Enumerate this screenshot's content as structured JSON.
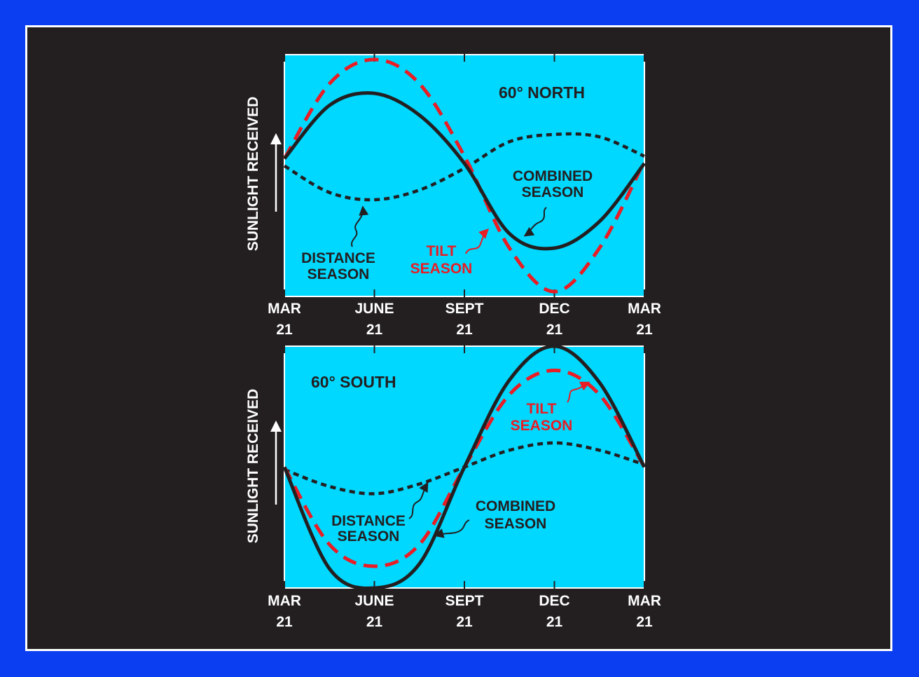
{
  "colors": {
    "background": "#0a3ef0",
    "panel": "#231f20",
    "plot_area": "#00d8ff",
    "combined": "#231f20",
    "tilt": "#ea1c24",
    "distance": "#231f20",
    "axis_text": "#ffffff"
  },
  "chart_data": [
    {
      "type": "line",
      "title": "60° NORTH",
      "ylabel": "SUNLIGHT RECEIVED",
      "xlabel": "",
      "x_ticks": [
        {
          "month": "MAR",
          "day": "21",
          "x": 0
        },
        {
          "month": "JUNE",
          "day": "21",
          "x": 3
        },
        {
          "month": "SEPT",
          "day": "21",
          "x": 6
        },
        {
          "month": "DEC",
          "day": "21",
          "x": 9
        },
        {
          "month": "MAR",
          "day": "21",
          "x": 12
        }
      ],
      "xlim": [
        0,
        12
      ],
      "ylim": [
        0,
        100
      ],
      "series": [
        {
          "key": "tilt",
          "label_lines": [
            "TILT",
            "SEASON"
          ],
          "style": "dashed",
          "x": [
            0,
            1.5,
            3,
            4.5,
            6,
            7.5,
            9,
            10.5,
            12
          ],
          "values": [
            57,
            88,
            98,
            88,
            58,
            20,
            2,
            20,
            56
          ]
        },
        {
          "key": "combined",
          "label_lines": [
            "COMBINED",
            "SEASON"
          ],
          "style": "solid",
          "x": [
            0,
            1.5,
            3,
            4.5,
            6,
            7.5,
            9,
            10.5,
            12
          ],
          "values": [
            57,
            79,
            84,
            75,
            55,
            26,
            20,
            31,
            55
          ]
        },
        {
          "key": "distance",
          "label_lines": [
            "DISTANCE",
            "SEASON"
          ],
          "style": "dotted",
          "x": [
            0,
            1.5,
            3,
            4.5,
            6,
            7.5,
            9,
            10.5,
            12
          ],
          "values": [
            54,
            43,
            40,
            44,
            53,
            64,
            67,
            66,
            58
          ]
        }
      ]
    },
    {
      "type": "line",
      "title": "60° SOUTH",
      "ylabel": "SUNLIGHT RECEIVED",
      "xlabel": "",
      "x_ticks": [
        {
          "month": "MAR",
          "day": "21",
          "x": 0
        },
        {
          "month": "JUNE",
          "day": "21",
          "x": 3
        },
        {
          "month": "SEPT",
          "day": "21",
          "x": 6
        },
        {
          "month": "DEC",
          "day": "21",
          "x": 9
        },
        {
          "month": "MAR",
          "day": "21",
          "x": 12
        }
      ],
      "xlim": [
        0,
        12
      ],
      "ylim": [
        0,
        100
      ],
      "series": [
        {
          "key": "tilt",
          "label_lines": [
            "TILT",
            "SEASON"
          ],
          "style": "dashed",
          "x": [
            0,
            1.5,
            3,
            4.5,
            6,
            7.5,
            9,
            10.5,
            12
          ],
          "values": [
            50,
            18,
            9,
            18,
            50,
            80,
            90,
            80,
            50
          ]
        },
        {
          "key": "combined",
          "label_lines": [
            "COMBINED",
            "SEASON"
          ],
          "style": "solid",
          "x": [
            0,
            1.5,
            3,
            4.5,
            6,
            7.5,
            9,
            10.5,
            12
          ],
          "values": [
            50,
            8,
            0,
            10,
            50,
            86,
            100,
            85,
            50
          ]
        },
        {
          "key": "distance",
          "label_lines": [
            "DISTANCE",
            "SEASON"
          ],
          "style": "dotted",
          "x": [
            0,
            1.5,
            3,
            4.5,
            6,
            7.5,
            9,
            10.5,
            12
          ],
          "values": [
            49,
            42,
            39,
            43,
            50,
            57,
            60,
            57,
            51
          ]
        }
      ]
    }
  ]
}
